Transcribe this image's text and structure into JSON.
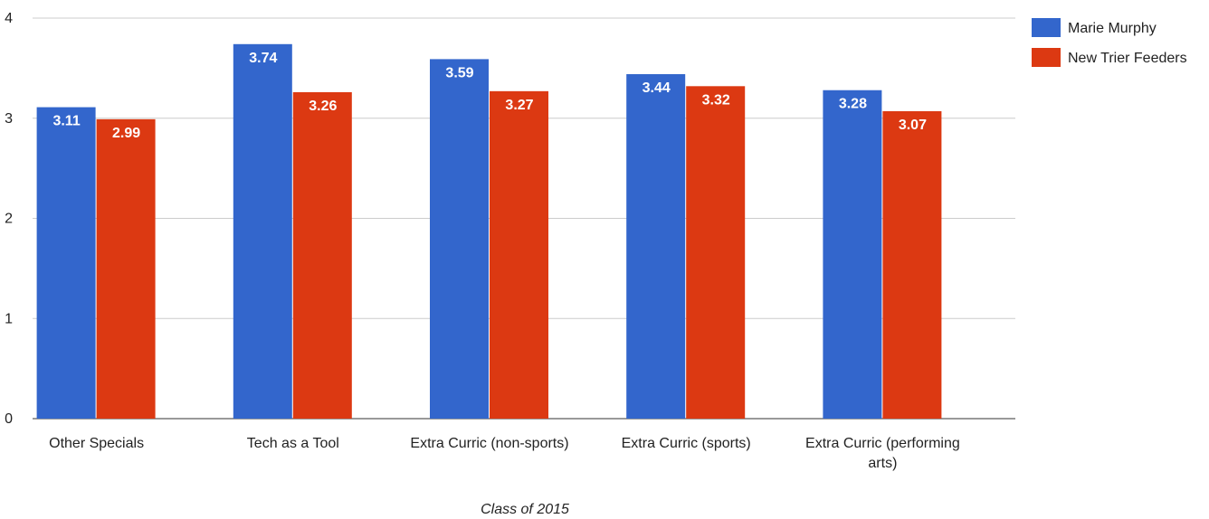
{
  "chart_data": {
    "type": "bar",
    "categories": [
      "Other Specials",
      "Tech as a Tool",
      "Extra Curric (non-sports)",
      "Extra Curric (sports)",
      "Extra Curric (performing arts)"
    ],
    "series": [
      {
        "name": "Marie Murphy",
        "values": [
          3.11,
          3.74,
          3.59,
          3.44,
          3.28
        ],
        "color": "#3366cc"
      },
      {
        "name": "New Trier Feeders",
        "values": [
          2.99,
          3.26,
          3.27,
          3.32,
          3.07
        ],
        "color": "#dc3912"
      }
    ],
    "title": "",
    "xlabel": "Class of 2015",
    "ylabel": "",
    "ylim": [
      0,
      4
    ],
    "yticks": [
      0,
      1,
      2,
      3,
      4
    ],
    "grid": true,
    "legend_position": "right",
    "data_labels": true
  }
}
